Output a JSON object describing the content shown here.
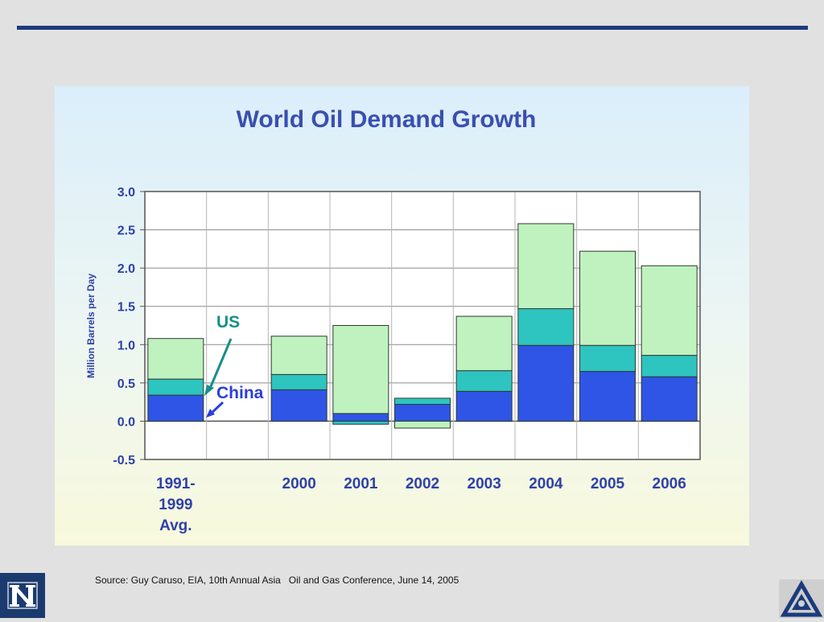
{
  "chart_data": {
    "type": "bar",
    "stacked": true,
    "title": "World Oil Demand Growth",
    "ylabel": "Million Barrels per Day",
    "xlabel": "",
    "ylim": [
      -0.5,
      3.0
    ],
    "yticks": [
      "3.0",
      "2.5",
      "2.0",
      "1.5",
      "1.0",
      "0.5",
      "0.0",
      "-0.5"
    ],
    "ytick_values": [
      3.0,
      2.5,
      2.0,
      1.5,
      1.0,
      0.5,
      0.0,
      -0.5
    ],
    "categories": [
      {
        "label": "1991-\n1999\nAvg.",
        "lines": [
          "1991-",
          "1999",
          "Avg."
        ]
      },
      {
        "label": "",
        "lines": [
          ""
        ]
      },
      {
        "label": "2000",
        "lines": [
          "2000"
        ]
      },
      {
        "label": "2001",
        "lines": [
          "2001"
        ]
      },
      {
        "label": "2002",
        "lines": [
          "2002"
        ]
      },
      {
        "label": "2003",
        "lines": [
          "2003"
        ]
      },
      {
        "label": "2004",
        "lines": [
          "2004"
        ]
      },
      {
        "label": "2005",
        "lines": [
          "2005"
        ]
      },
      {
        "label": "2006",
        "lines": [
          "2006"
        ]
      }
    ],
    "series": [
      {
        "key": "china",
        "color": "#2f55e6",
        "values": [
          0.34,
          null,
          0.41,
          0.1,
          0.22,
          0.39,
          0.99,
          0.65,
          0.58
        ]
      },
      {
        "key": "us",
        "color": "#2ec4c0",
        "values": [
          0.21,
          null,
          0.2,
          -0.04,
          0.08,
          0.27,
          0.48,
          0.34,
          0.28
        ]
      },
      {
        "key": "other",
        "color": "#bff2bf",
        "values": [
          0.53,
          null,
          0.5,
          1.15,
          -0.09,
          0.71,
          1.11,
          1.23,
          1.17
        ]
      }
    ],
    "grid": true,
    "annotations": [
      {
        "text": "US",
        "target_series": "us"
      },
      {
        "text": "China",
        "target_series": "china"
      }
    ]
  },
  "footer": {
    "source": "Source: Guy Caruso, EIA, 10th Annual Asia   Oil and Gas Conference, June 14, 2005"
  },
  "logos": {
    "left_icon": "university-n-logo",
    "right_icon": "triangle-emblem-logo"
  }
}
